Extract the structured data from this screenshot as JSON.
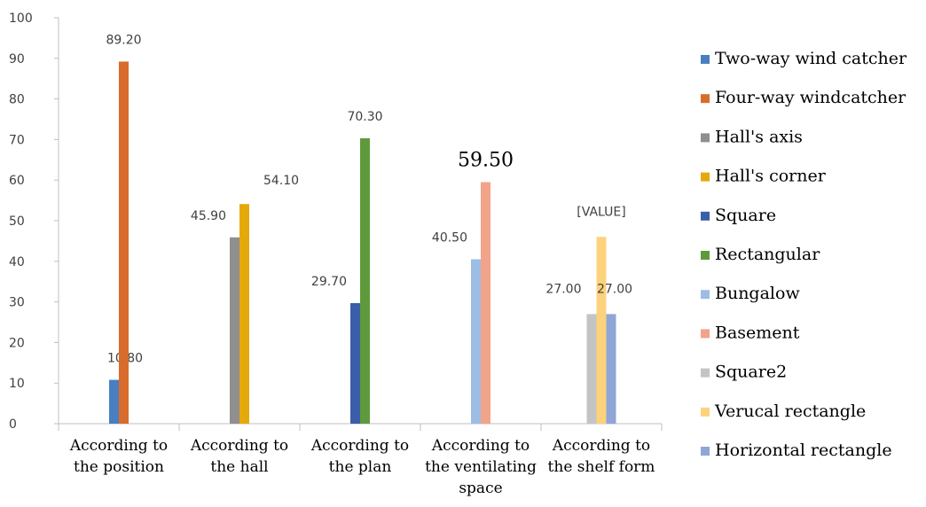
{
  "chart_data": {
    "type": "bar",
    "categories": [
      [
        "According to",
        "the position"
      ],
      [
        "According to",
        "the hall"
      ],
      [
        "According to",
        "the plan"
      ],
      [
        "According to",
        "the ventilating",
        "space"
      ],
      [
        "According to",
        "the shelf form"
      ]
    ],
    "ylim": [
      0,
      100
    ],
    "yticks": [
      0,
      10,
      20,
      30,
      40,
      50,
      60,
      70,
      80,
      90,
      100
    ],
    "grid": false,
    "legend_position": "right",
    "series": [
      {
        "name": "Two-way wind catcher",
        "color": "#4a7fbf",
        "values": [
          10.8,
          null,
          null,
          null,
          null
        ],
        "labels": [
          "10.80",
          null,
          null,
          null,
          null
        ]
      },
      {
        "name": "Four-way windcatcher",
        "color": "#d96c2c",
        "values": [
          89.2,
          null,
          null,
          null,
          null
        ],
        "labels": [
          "89.20",
          null,
          null,
          null,
          null
        ]
      },
      {
        "name": "Hall's axis",
        "color": "#8f8f8f",
        "values": [
          null,
          45.9,
          null,
          null,
          null
        ],
        "labels": [
          null,
          "45.90",
          null,
          null,
          null
        ]
      },
      {
        "name": "Hall's corner",
        "color": "#e5a90c",
        "values": [
          null,
          54.1,
          null,
          null,
          null
        ],
        "labels": [
          null,
          "54.10",
          null,
          null,
          null
        ]
      },
      {
        "name": "Square",
        "color": "#3a5ea8",
        "values": [
          null,
          null,
          29.7,
          null,
          null
        ],
        "labels": [
          null,
          null,
          "29.70",
          null,
          null
        ]
      },
      {
        "name": "Rectangular",
        "color": "#5e9a3c",
        "values": [
          null,
          null,
          70.3,
          null,
          null
        ],
        "labels": [
          null,
          null,
          "70.30",
          null,
          null
        ]
      },
      {
        "name": "Bungalow",
        "color": "#9dbde4",
        "values": [
          null,
          null,
          null,
          40.5,
          null
        ],
        "labels": [
          null,
          null,
          null,
          "40.50",
          null
        ]
      },
      {
        "name": "Basement",
        "color": "#f2a48a",
        "values": [
          null,
          null,
          null,
          59.5,
          null
        ],
        "labels": [
          null,
          null,
          null,
          "59.50",
          null
        ]
      },
      {
        "name": "Square2",
        "color": "#c4c4c4",
        "values": [
          null,
          null,
          null,
          null,
          27.0
        ],
        "labels": [
          null,
          null,
          null,
          null,
          "27.00"
        ]
      },
      {
        "name": "Verucal rectangle",
        "color": "#fcd27c",
        "values": [
          null,
          null,
          null,
          null,
          46.0
        ],
        "labels": [
          null,
          null,
          null,
          null,
          "[VALUE]"
        ]
      },
      {
        "name": "Horizontal rectangle",
        "color": "#8fa6d6",
        "values": [
          null,
          null,
          null,
          null,
          27.0
        ],
        "labels": [
          null,
          null,
          null,
          null,
          "27.00"
        ]
      }
    ]
  }
}
